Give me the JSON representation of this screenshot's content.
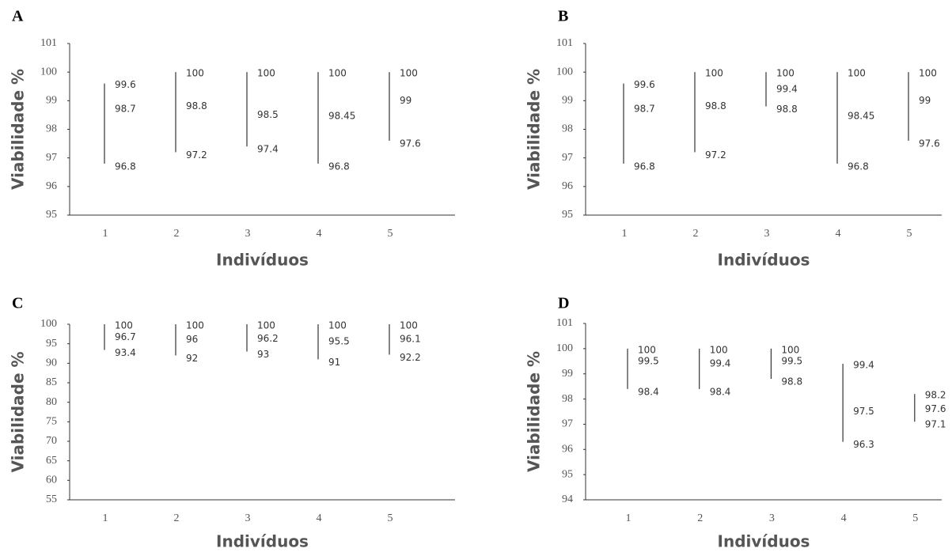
{
  "chart_data": [
    {
      "type": "hilo",
      "panel_label": "A",
      "y_label": "Viabilidade %",
      "x_label": "Indivíduos",
      "categories": [
        "1",
        "2",
        "3",
        "4",
        "5"
      ],
      "high": [
        99.6,
        100,
        100,
        100,
        100
      ],
      "mid": [
        98.7,
        98.8,
        98.5,
        98.45,
        99
      ],
      "low": [
        96.8,
        97.2,
        97.4,
        96.8,
        97.6
      ],
      "ylim": [
        95,
        101
      ],
      "yticks": [
        95,
        96,
        97,
        98,
        99,
        100,
        101
      ],
      "color": "#333333"
    },
    {
      "type": "hilo",
      "panel_label": "B",
      "y_label": "Viabilidade %",
      "x_label": "Indivíduos",
      "categories": [
        "1",
        "2",
        "3",
        "4",
        "5"
      ],
      "high": [
        99.6,
        100,
        100,
        100,
        100
      ],
      "mid": [
        98.7,
        98.8,
        99.4,
        98.45,
        99
      ],
      "low": [
        96.8,
        97.2,
        98.8,
        96.8,
        97.6
      ],
      "ylim": [
        95,
        101
      ],
      "yticks": [
        95,
        96,
        97,
        98,
        99,
        100,
        101
      ],
      "color": "#333333"
    },
    {
      "type": "hilo",
      "panel_label": "C",
      "y_label": "Viabilidade %",
      "x_label": "Indivíduos",
      "categories": [
        "1",
        "2",
        "3",
        "4",
        "5"
      ],
      "high": [
        100,
        100,
        100,
        100,
        100
      ],
      "mid": [
        96.7,
        96,
        96.2,
        95.5,
        96.1
      ],
      "low": [
        93.4,
        92,
        93,
        91,
        92.2
      ],
      "ylim": [
        55,
        100
      ],
      "yticks": [
        55,
        60,
        65,
        70,
        75,
        80,
        85,
        90,
        95,
        100
      ],
      "color": "#333333"
    },
    {
      "type": "hilo",
      "panel_label": "D",
      "y_label": "Viabilidade %",
      "x_label": "Indivíduos",
      "categories": [
        "1",
        "2",
        "3",
        "4",
        "5"
      ],
      "high": [
        100,
        100,
        100,
        99.4,
        98.2
      ],
      "mid": [
        99.5,
        99.4,
        99.5,
        97.5,
        97.6
      ],
      "low": [
        98.4,
        98.4,
        98.8,
        96.3,
        97.1
      ],
      "ylim": [
        94,
        101
      ],
      "yticks": [
        94,
        95,
        96,
        97,
        98,
        99,
        100,
        101
      ],
      "color": "#333333"
    }
  ]
}
